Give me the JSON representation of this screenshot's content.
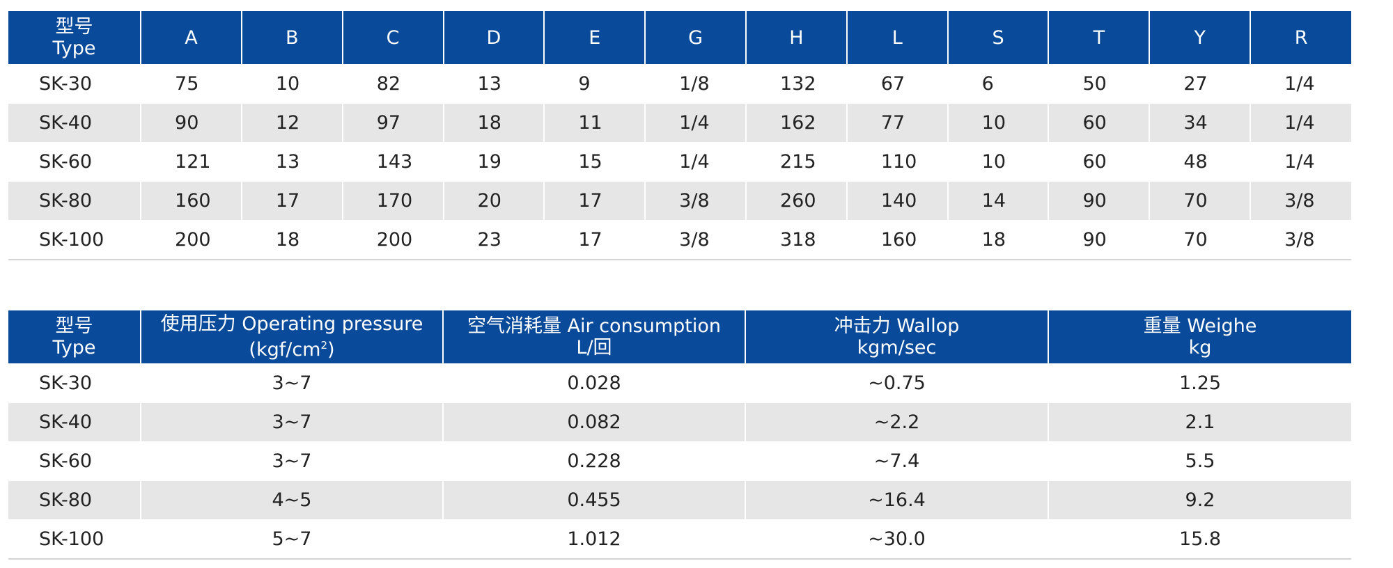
{
  "dimensions_table": {
    "type_header_cn": "型号",
    "type_header_en": "Type",
    "columns": [
      "A",
      "B",
      "C",
      "D",
      "E",
      "G",
      "H",
      "L",
      "S",
      "T",
      "Y",
      "R"
    ],
    "rows": [
      {
        "type": "SK-30",
        "values": [
          "75",
          "10",
          "82",
          "13",
          "9",
          "1/8",
          "132",
          "67",
          "6",
          "50",
          "27",
          "1/4"
        ]
      },
      {
        "type": "SK-40",
        "values": [
          "90",
          "12",
          "97",
          "18",
          "11",
          "1/4",
          "162",
          "77",
          "10",
          "60",
          "34",
          "1/4"
        ]
      },
      {
        "type": "SK-60",
        "values": [
          "121",
          "13",
          "143",
          "19",
          "15",
          "1/4",
          "215",
          "110",
          "10",
          "60",
          "48",
          "1/4"
        ]
      },
      {
        "type": "SK-80",
        "values": [
          "160",
          "17",
          "170",
          "20",
          "17",
          "3/8",
          "260",
          "140",
          "14",
          "90",
          "70",
          "3/8"
        ]
      },
      {
        "type": "SK-100",
        "values": [
          "200",
          "18",
          "200",
          "23",
          "17",
          "3/8",
          "318",
          "160",
          "18",
          "90",
          "70",
          "3/8"
        ]
      }
    ]
  },
  "performance_table": {
    "type_header_cn": "型号",
    "type_header_en": "Type",
    "pressure_label": "使用压力 Operating pressure",
    "pressure_unit_prefix": "(kgf/cm",
    "pressure_unit_sup": "2",
    "pressure_unit_suffix": ")",
    "air_label": "空气消耗量 Air consumption",
    "air_unit": "L/回",
    "wallop_label": "冲击力 Wallop",
    "wallop_unit": "kgm/sec",
    "weight_label": "重量 Weighe",
    "weight_unit": "kg",
    "rows": [
      {
        "type": "SK-30",
        "pressure": "3~7",
        "air": "0.028",
        "wallop": "~0.75",
        "weight": "1.25"
      },
      {
        "type": "SK-40",
        "pressure": "3~7",
        "air": "0.082",
        "wallop": "~2.2",
        "weight": "2.1"
      },
      {
        "type": "SK-60",
        "pressure": "3~7",
        "air": "0.228",
        "wallop": "~7.4",
        "weight": "5.5"
      },
      {
        "type": "SK-80",
        "pressure": "4~5",
        "air": "0.455",
        "wallop": "~16.4",
        "weight": "9.2"
      },
      {
        "type": "SK-100",
        "pressure": "5~7",
        "air": "1.012",
        "wallop": "~30.0",
        "weight": "15.8"
      }
    ]
  }
}
